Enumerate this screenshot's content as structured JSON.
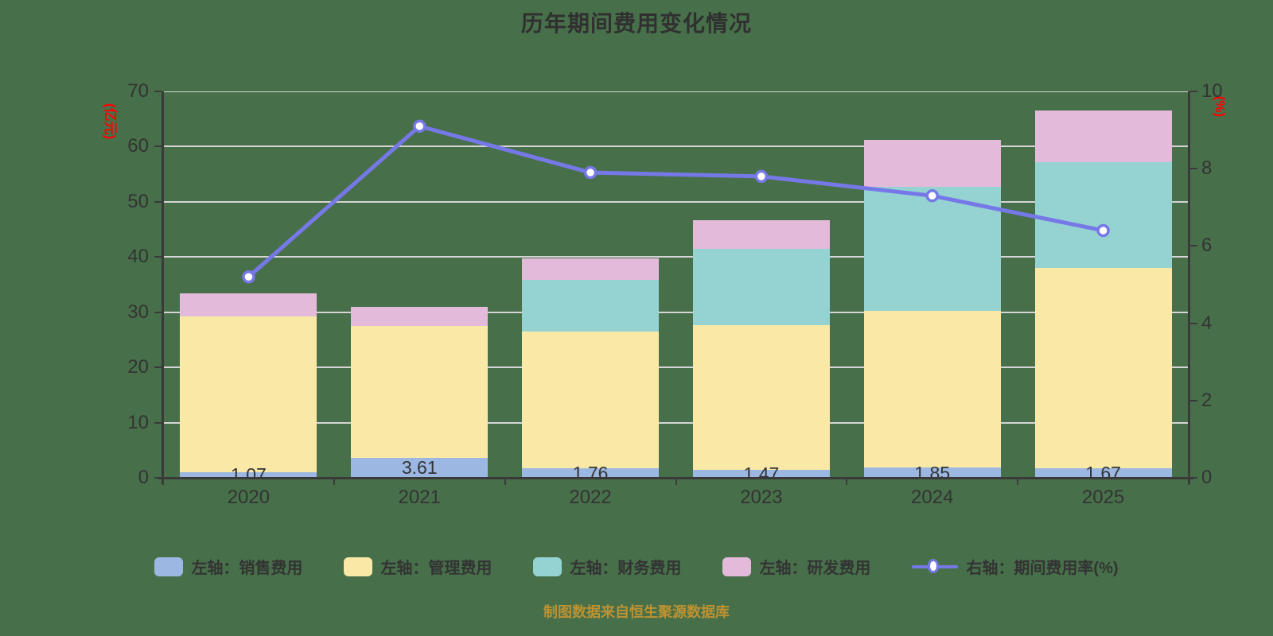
{
  "title": "历年期间费用变化情况",
  "caption": "制图数据来自恒生聚源数据库",
  "colors": {
    "background": "#47704A",
    "title_text": "#303030",
    "caption_text": "#BE9231",
    "axis_text": "#333333",
    "axis_name_text": "#FF0000",
    "axis_line": "#3A3A3A",
    "gridline": "#D6D4D4",
    "bar_blue": "#9CB8E2",
    "bar_yellow": "#FAE8A6",
    "bar_teal": "#94D3D2",
    "bar_pink": "#E4BADB",
    "line_purple": "#7678E8",
    "marker_fill": "#FFFFFF"
  },
  "chart_data": {
    "type": "bar",
    "subtype": "stacked-bar-with-line",
    "title": "历年期间费用变化情况",
    "categories": [
      "2020",
      "2021",
      "2022",
      "2023",
      "2024",
      "2025"
    ],
    "series": [
      {
        "name": "左轴：销售费用",
        "type": "bar",
        "stack": true,
        "axis": "left",
        "color_key": "bar_blue",
        "values": [
          1.07,
          3.61,
          1.76,
          1.47,
          1.85,
          1.67
        ],
        "data_labels": [
          "1.07",
          "3.61",
          "1.76",
          "1.47",
          "1.85",
          "1.67"
        ]
      },
      {
        "name": "左轴：管理费用",
        "type": "bar",
        "stack": true,
        "axis": "left",
        "color_key": "bar_yellow",
        "values": [
          28.2,
          23.9,
          24.7,
          26.2,
          28.4,
          36.3
        ]
      },
      {
        "name": "左轴：财务费用",
        "type": "bar",
        "stack": true,
        "axis": "left",
        "color_key": "bar_teal",
        "values": [
          0,
          0,
          9.4,
          13.8,
          22.4,
          19.2
        ]
      },
      {
        "name": "左轴：研发费用",
        "type": "bar",
        "stack": true,
        "axis": "left",
        "color_key": "bar_pink",
        "values": [
          4.1,
          3.5,
          3.9,
          5.2,
          8.5,
          9.4
        ]
      },
      {
        "name": "右轴：期间费用率(%)",
        "type": "line",
        "axis": "right",
        "color_key": "line_purple",
        "values": [
          5.2,
          9.1,
          7.9,
          7.8,
          7.3,
          6.4
        ]
      }
    ],
    "left_axis": {
      "name": "(亿元)",
      "min": 0,
      "max": 70,
      "ticks": [
        0,
        10,
        20,
        30,
        40,
        50,
        60,
        70
      ]
    },
    "right_axis": {
      "name": "(%)",
      "min": 0,
      "max": 10,
      "ticks": [
        0,
        2,
        4,
        6,
        8,
        10
      ]
    },
    "grid": true,
    "legend_position": "bottom"
  }
}
